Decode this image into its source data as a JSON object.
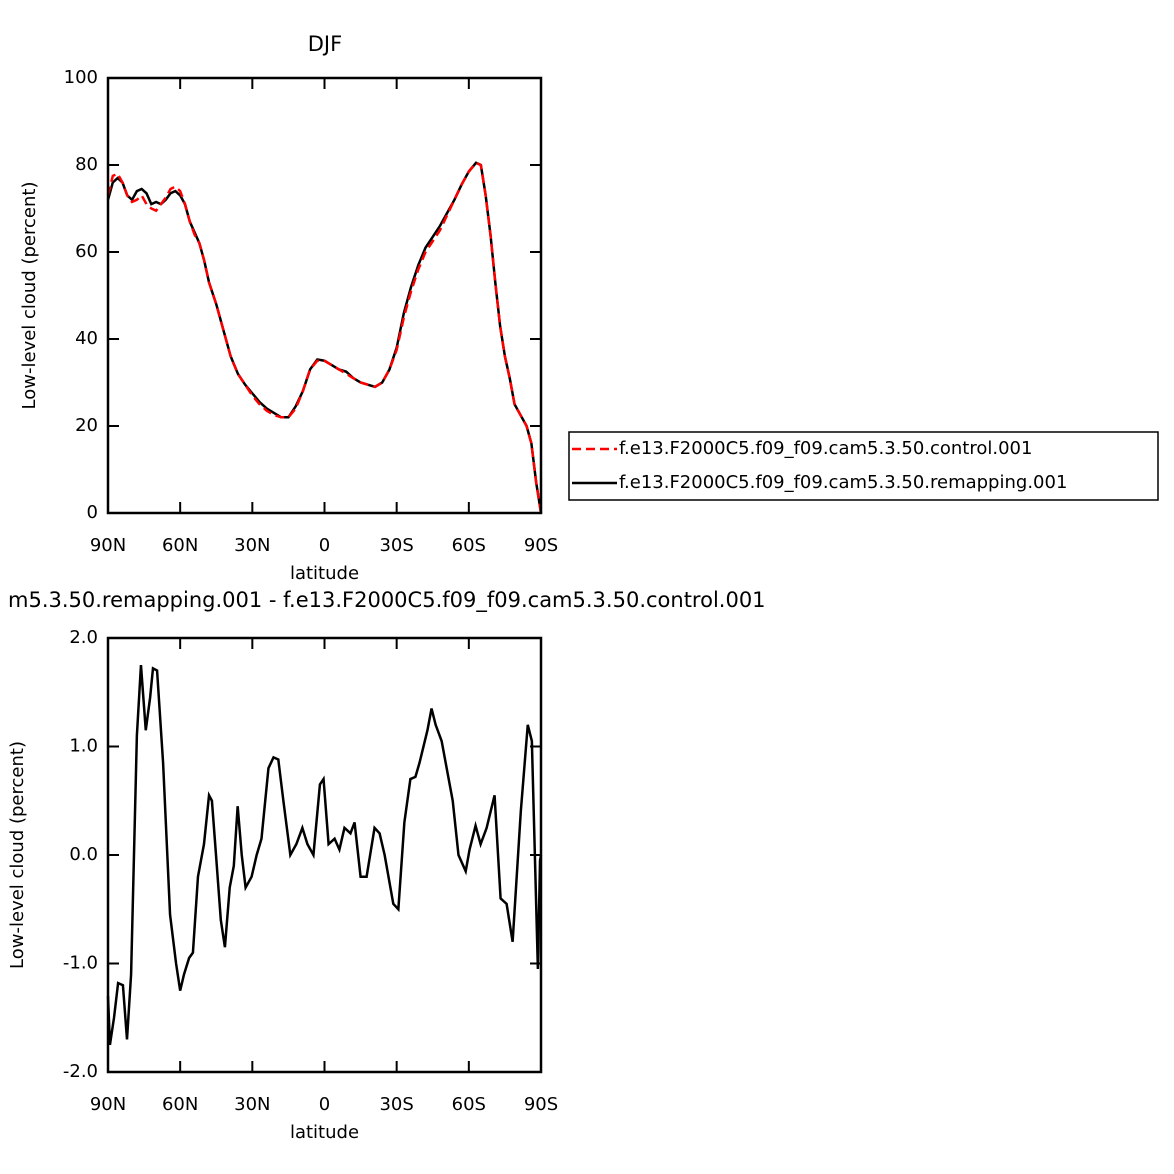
{
  "chart_data": [
    {
      "type": "line",
      "title": "DJF",
      "xlabel": "latitude",
      "ylabel": "Low-level cloud (percent)",
      "xlim": [
        90,
        -90
      ],
      "xticks": [
        {
          "value": 90,
          "label": "90N"
        },
        {
          "value": 60,
          "label": "60N"
        },
        {
          "value": 30,
          "label": "30N"
        },
        0,
        {
          "value": -30,
          "label": "30S"
        },
        {
          "value": -60,
          "label": "60S"
        },
        {
          "value": -90,
          "label": "90S"
        }
      ],
      "ylim": [
        0,
        100
      ],
      "yticks": [
        0,
        20,
        40,
        60,
        80,
        100
      ],
      "legend": "right",
      "x": [
        90,
        88,
        86,
        84,
        82,
        80,
        78,
        76,
        74,
        72,
        70,
        68,
        66,
        64,
        62,
        60,
        58,
        56,
        54,
        52,
        50,
        48,
        45,
        42,
        39,
        36,
        33,
        30,
        27,
        24,
        21,
        18,
        15,
        12,
        9,
        6,
        3,
        0,
        -3,
        -6,
        -9,
        -12,
        -15,
        -18,
        -21,
        -24,
        -27,
        -30,
        -33,
        -36,
        -39,
        -42,
        -45,
        -48,
        -51,
        -54,
        -57,
        -60,
        -63,
        -65,
        -67,
        -69,
        -71,
        -73,
        -75,
        -77,
        -79,
        -81,
        -84,
        -86,
        -88,
        -90
      ],
      "series": [
        {
          "name": "f.e13.F2000C5.f09_f09.cam5.3.50.control.001",
          "color": "#ff0000",
          "dashed": true,
          "values": [
            73,
            77.5,
            78,
            76,
            73,
            71.5,
            72,
            73,
            71,
            70,
            69.5,
            71,
            72.5,
            74.5,
            75,
            74,
            71,
            67,
            64,
            62,
            58,
            53,
            48,
            42,
            36,
            32,
            29.5,
            27,
            25,
            23.5,
            22.5,
            22,
            22,
            24,
            28,
            33,
            35,
            35,
            34,
            33,
            32,
            31,
            30,
            29.5,
            29,
            30,
            33,
            37.5,
            45,
            51,
            56,
            60,
            62.5,
            65,
            68.5,
            72,
            75.5,
            78.5,
            80.5,
            80,
            73,
            64,
            53,
            43,
            36,
            31,
            25,
            23,
            20,
            16,
            7,
            0
          ]
        },
        {
          "name": "f.e13.F2000C5.f09_f09.cam5.3.50.remapping.001",
          "color": "#000000",
          "dashed": false,
          "values": [
            72,
            76,
            77,
            76,
            73,
            72,
            74,
            74.5,
            73.5,
            71,
            71.5,
            71,
            72,
            73.5,
            74,
            73,
            71,
            67,
            64.5,
            62,
            58,
            53,
            48,
            42,
            36,
            32,
            29.5,
            27.5,
            25.5,
            24,
            23,
            22,
            22,
            24.5,
            28,
            33,
            35.3,
            35,
            34,
            33,
            32.5,
            31,
            30,
            29.5,
            29,
            30,
            33,
            38,
            46,
            52,
            57,
            61,
            63.5,
            66,
            69,
            72,
            75.5,
            78.5,
            80.5,
            80,
            73,
            64,
            53,
            43,
            36,
            31,
            25,
            23,
            20,
            16,
            7,
            0
          ]
        }
      ]
    },
    {
      "type": "line",
      "title": "m5.3.50.remapping.001 - f.e13.F2000C5.f09_f09.cam5.3.50.control.001",
      "xlabel": "latitude",
      "ylabel": "Low-level cloud (percent)",
      "xlim": [
        90,
        -90
      ],
      "xticks": [
        {
          "value": 90,
          "label": "90N"
        },
        {
          "value": 60,
          "label": "60N"
        },
        {
          "value": 30,
          "label": "30N"
        },
        0,
        {
          "value": -30,
          "label": "30S"
        },
        {
          "value": -60,
          "label": "60S"
        },
        {
          "value": -90,
          "label": "90S"
        }
      ],
      "ylim": [
        -2,
        2
      ],
      "yticks": [
        {
          "value": -2,
          "label": "-2.0"
        },
        {
          "value": -1,
          "label": "-1.0"
        },
        {
          "value": 0,
          "label": "0.0"
        },
        {
          "value": 1,
          "label": "1.0"
        },
        {
          "value": 2,
          "label": "2.0"
        }
      ],
      "color": "#000000",
      "x": [
        90,
        89.2,
        87.5,
        85.8,
        83.8,
        82.1,
        80.4,
        78,
        76.3,
        74.3,
        72.5,
        71.3,
        69.6,
        67.1,
        64.2,
        61.7,
        60,
        58.4,
        56.3,
        54.7,
        52.6,
        50.1,
        48,
        46.8,
        45.1,
        43.1,
        41.4,
        39.4,
        37.7,
        36.1,
        34.4,
        32.8,
        30.3,
        28.2,
        26.2,
        23.3,
        21.2,
        19.2,
        17.1,
        14.2,
        11.7,
        9.2,
        7.1,
        4.6,
        1.9,
        0.4,
        -1.7,
        -4.2,
        -6.2,
        -8.3,
        -10.8,
        -12.5,
        -15,
        -17.5,
        -20.8,
        -22.9,
        -25,
        -28.6,
        -30.7,
        -33.2,
        -35.7,
        -37.8,
        -39.5,
        -42.8,
        -44.5,
        -46.2,
        -48.7,
        -53.3,
        -55.7,
        -58.7,
        -60.3,
        -62.8,
        -64.9,
        -67.4,
        -70.7,
        -73.2,
        -75.7,
        -78.2,
        -81.6,
        -84.5,
        -86.2,
        -88.7,
        -89.6,
        -90
      ],
      "values": [
        -1.3,
        -1.75,
        -1.5,
        -1.18,
        -1.2,
        -1.7,
        -1.1,
        1.1,
        1.75,
        1.15,
        1.45,
        1.72,
        1.7,
        0.85,
        -0.55,
        -1.0,
        -1.25,
        -1.1,
        -0.95,
        -0.9,
        -0.2,
        0.1,
        0.55,
        0.5,
        0.0,
        -0.6,
        -0.85,
        -0.3,
        -0.1,
        0.45,
        0.0,
        -0.3,
        -0.2,
        0.0,
        0.15,
        0.8,
        0.9,
        0.88,
        0.5,
        0.0,
        0.1,
        0.25,
        0.1,
        0.0,
        0.65,
        0.7,
        0.1,
        0.15,
        0.05,
        0.25,
        0.2,
        0.3,
        -0.2,
        -0.2,
        0.25,
        0.2,
        0.0,
        -0.45,
        -0.5,
        0.3,
        0.7,
        0.72,
        0.85,
        1.15,
        1.35,
        1.2,
        1.05,
        0.5,
        0.0,
        -0.15,
        0.05,
        0.27,
        0.1,
        0.25,
        0.55,
        -0.4,
        -0.45,
        -0.8,
        0.4,
        1.2,
        1.05,
        -1.05,
        -0.05,
        0.0
      ]
    }
  ]
}
